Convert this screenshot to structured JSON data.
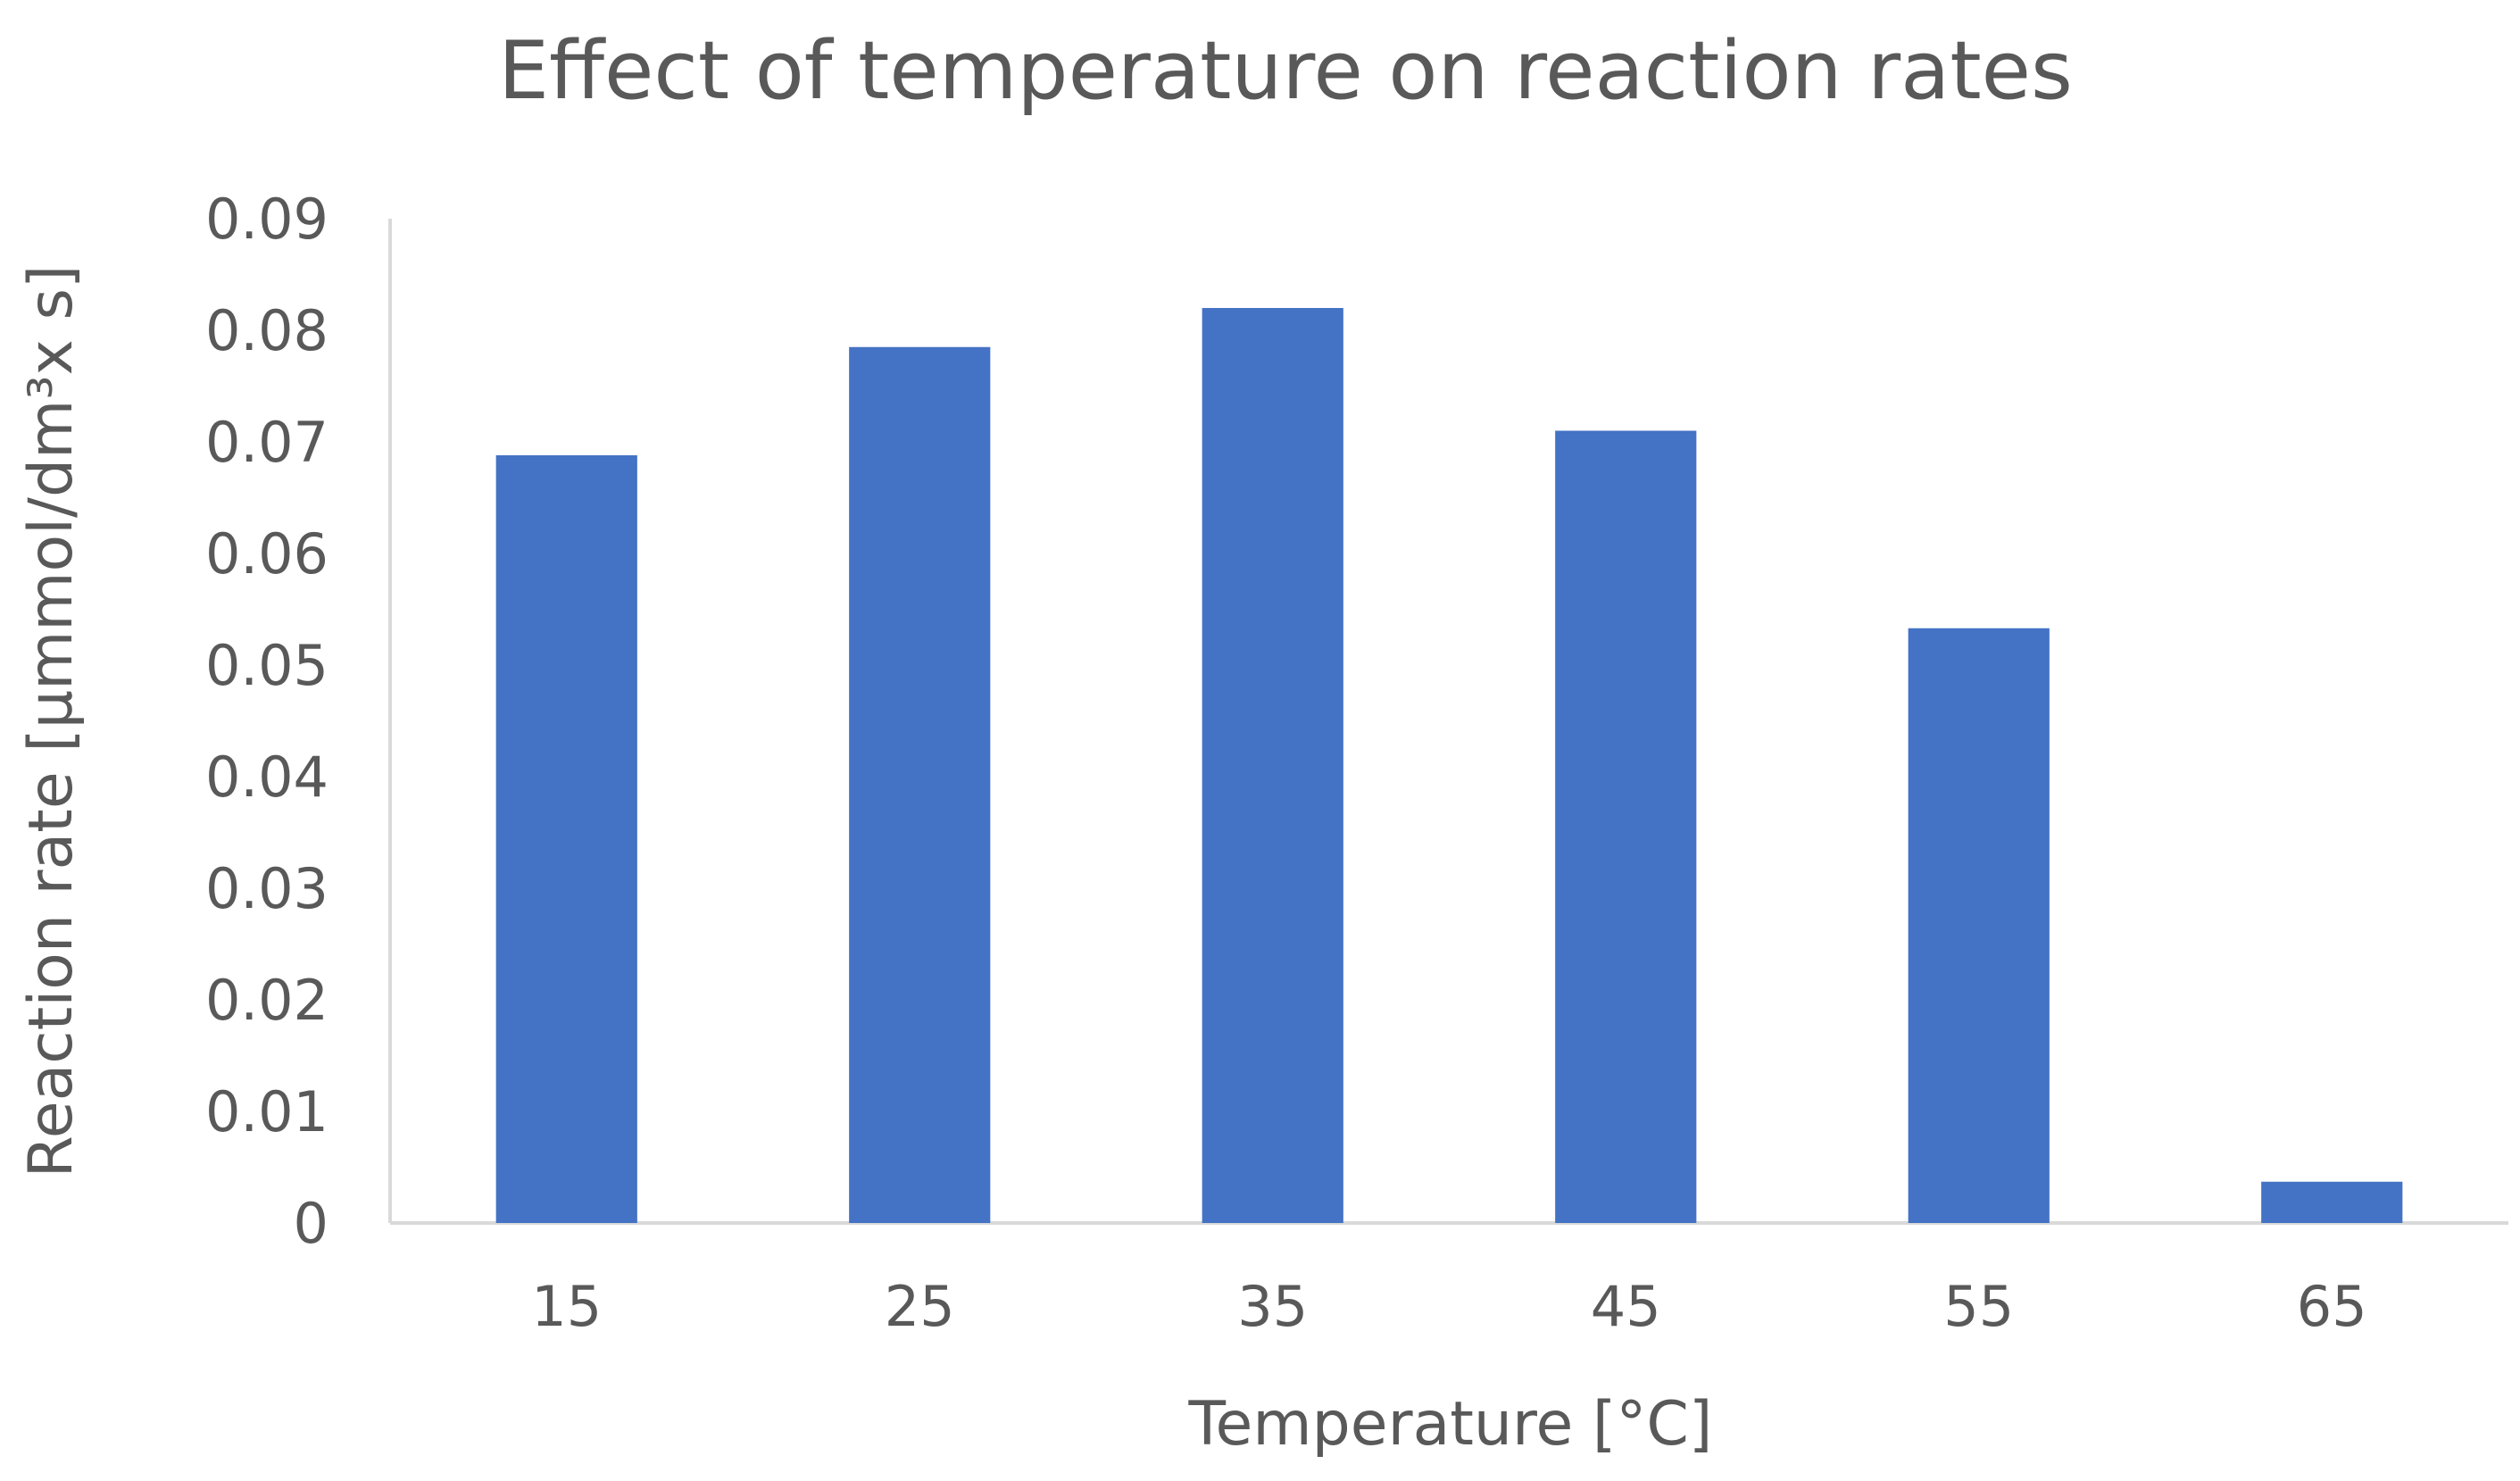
{
  "chart_data": {
    "type": "bar",
    "title": "Effect of temperature on reaction rates",
    "xlabel": "Temperature [°C]",
    "ylabel": "Reaction rate [µmmol/dm³x s]",
    "categories": [
      "15",
      "25",
      "35",
      "45",
      "55",
      "65"
    ],
    "values": [
      0.0688,
      0.0785,
      0.082,
      0.071,
      0.0533,
      0.0037
    ],
    "ylim": [
      0,
      0.09
    ],
    "yticks": [
      "0",
      "0.01",
      "0.02",
      "0.03",
      "0.04",
      "0.05",
      "0.06",
      "0.07",
      "0.08",
      "0.09"
    ],
    "grid": false,
    "legend": "none",
    "bar_color": "#4472C4",
    "axis_color": "#D9D9D9",
    "text_color": "#595959"
  }
}
